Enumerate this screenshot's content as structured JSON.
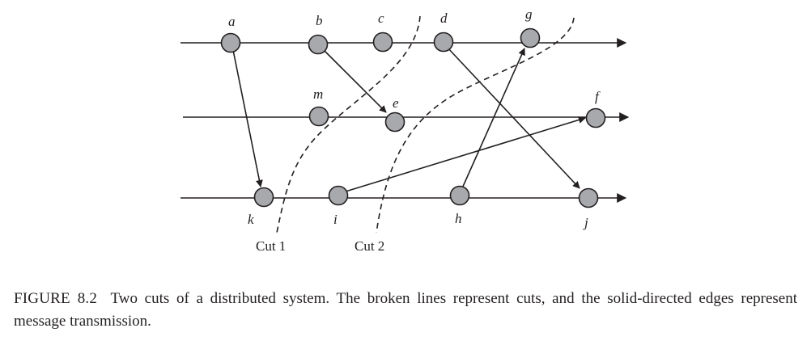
{
  "figure": {
    "number": "FIGURE 8.2",
    "caption": "Two cuts of a distributed system. The broken lines represent cuts, and the solid-directed edges represent message transmission."
  },
  "nodes": {
    "a": "a",
    "b": "b",
    "c": "c",
    "d": "d",
    "g": "g",
    "m": "m",
    "e": "e",
    "f": "f",
    "k": "k",
    "i": "i",
    "h": "h",
    "j": "j"
  },
  "cuts": {
    "cut1": "Cut 1",
    "cut2": "Cut 2"
  },
  "colors": {
    "node_fill": "#a7a9ac",
    "stroke": "#231f20",
    "text": "#231f20"
  }
}
